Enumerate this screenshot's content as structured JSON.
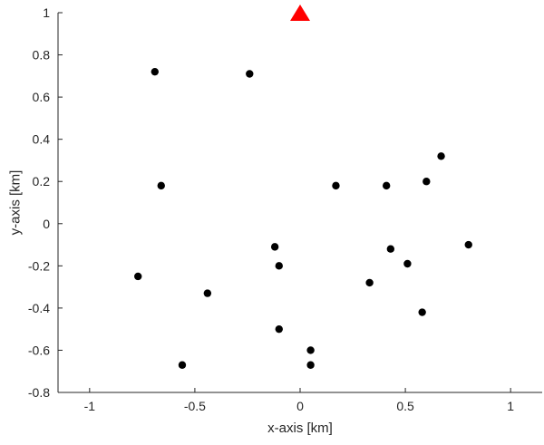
{
  "chart_data": {
    "type": "scatter",
    "xlabel": "x-axis [km]",
    "ylabel": "y-axis [km]",
    "xlim": [
      -1.15,
      1.15
    ],
    "ylim": [
      -0.8,
      1.0
    ],
    "xticks": [
      -1,
      -0.5,
      0,
      0.5,
      1
    ],
    "xtick_labels": [
      "-1",
      "-0.5",
      "0",
      "0.5",
      "1"
    ],
    "yticks": [
      -0.8,
      -0.6,
      -0.4,
      -0.2,
      0,
      0.2,
      0.4,
      0.6,
      0.8,
      1
    ],
    "ytick_labels": [
      "-0.8",
      "-0.6",
      "-0.4",
      "-0.2",
      "0",
      "0.2",
      "0.4",
      "0.6",
      "0.8",
      "1"
    ],
    "grid": false,
    "box": "left-bottom",
    "series": [
      {
        "marker": "circle",
        "color": "#000000",
        "points": [
          [
            -0.69,
            0.72
          ],
          [
            -0.24,
            0.71
          ],
          [
            -0.66,
            0.18
          ],
          [
            -0.77,
            -0.25
          ],
          [
            -0.44,
            -0.33
          ],
          [
            -0.56,
            -0.67
          ],
          [
            -0.12,
            -0.11
          ],
          [
            -0.1,
            -0.2
          ],
          [
            -0.1,
            -0.5
          ],
          [
            0.05,
            -0.6
          ],
          [
            0.05,
            -0.67
          ],
          [
            0.17,
            0.18
          ],
          [
            0.41,
            0.18
          ],
          [
            0.6,
            0.2
          ],
          [
            0.67,
            0.32
          ],
          [
            0.43,
            -0.12
          ],
          [
            0.51,
            -0.19
          ],
          [
            0.33,
            -0.28
          ],
          [
            0.58,
            -0.42
          ],
          [
            0.8,
            -0.1
          ]
        ]
      },
      {
        "marker": "triangle-up",
        "color": "#ff0000",
        "points": [
          [
            0.0,
            1.0
          ]
        ]
      }
    ]
  }
}
